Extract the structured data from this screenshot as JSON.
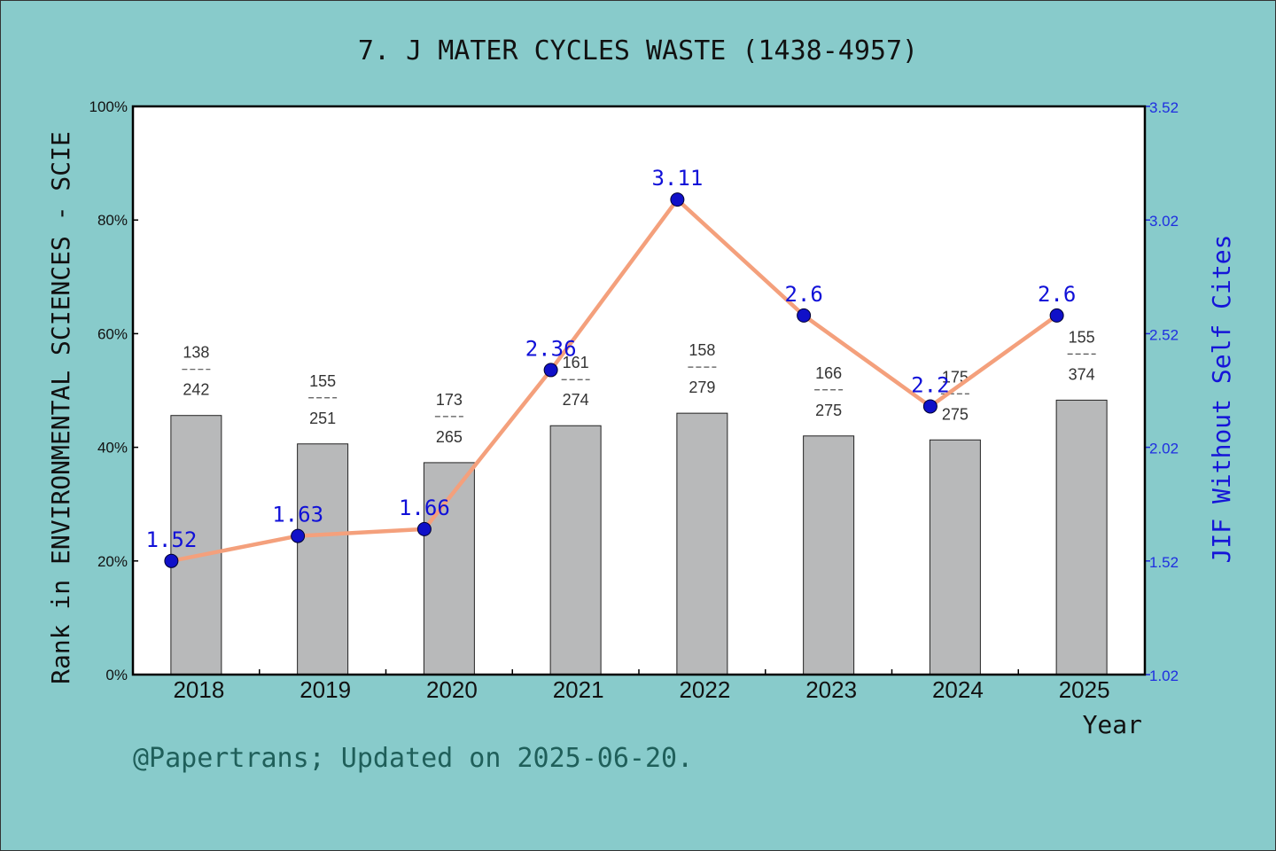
{
  "chart_data": {
    "type": "bar+line",
    "title": "7. J MATER CYCLES WASTE (1438-4957)",
    "ylabel_left": "Rank in ENVIRONMENTAL SCIENCES - SCIE",
    "ylabel_right": "JIF Without Self Cites",
    "xlabel": "Year",
    "footer": "@Papertrans; Updated on 2025-06-20.",
    "ylim_left": [
      0,
      100
    ],
    "yticks_left": [
      "0%",
      "20%",
      "40%",
      "60%",
      "80%",
      "100%"
    ],
    "ylim_right": [
      1.02,
      3.52
    ],
    "yticks_right": [
      "1.02",
      "1.52",
      "2.02",
      "2.52",
      "3.02",
      "3.52"
    ],
    "categories": [
      "2018",
      "2019",
      "2020",
      "2021",
      "2022",
      "2023",
      "2024",
      "2025"
    ],
    "bars": {
      "rank": [
        138,
        155,
        173,
        161,
        158,
        166,
        175,
        155
      ],
      "total": [
        242,
        251,
        265,
        274,
        279,
        275,
        275,
        374
      ],
      "values_percent": [
        45.6,
        40.6,
        37.3,
        43.8,
        46.0,
        42.0,
        41.3,
        48.3
      ]
    },
    "line": {
      "values": [
        1.52,
        1.63,
        1.66,
        2.36,
        3.11,
        2.6,
        2.2,
        2.6
      ],
      "labels": [
        "1.52",
        "1.63",
        "1.66",
        "2.36",
        "3.11",
        "2.6",
        "2.2",
        "2.6"
      ]
    },
    "colors": {
      "background": "#88cbcb",
      "bar": "#b8b9ba",
      "line": "#f4a07c",
      "marker": "#1010c8",
      "right_axis": "#1f2ee0"
    },
    "grid": false
  }
}
